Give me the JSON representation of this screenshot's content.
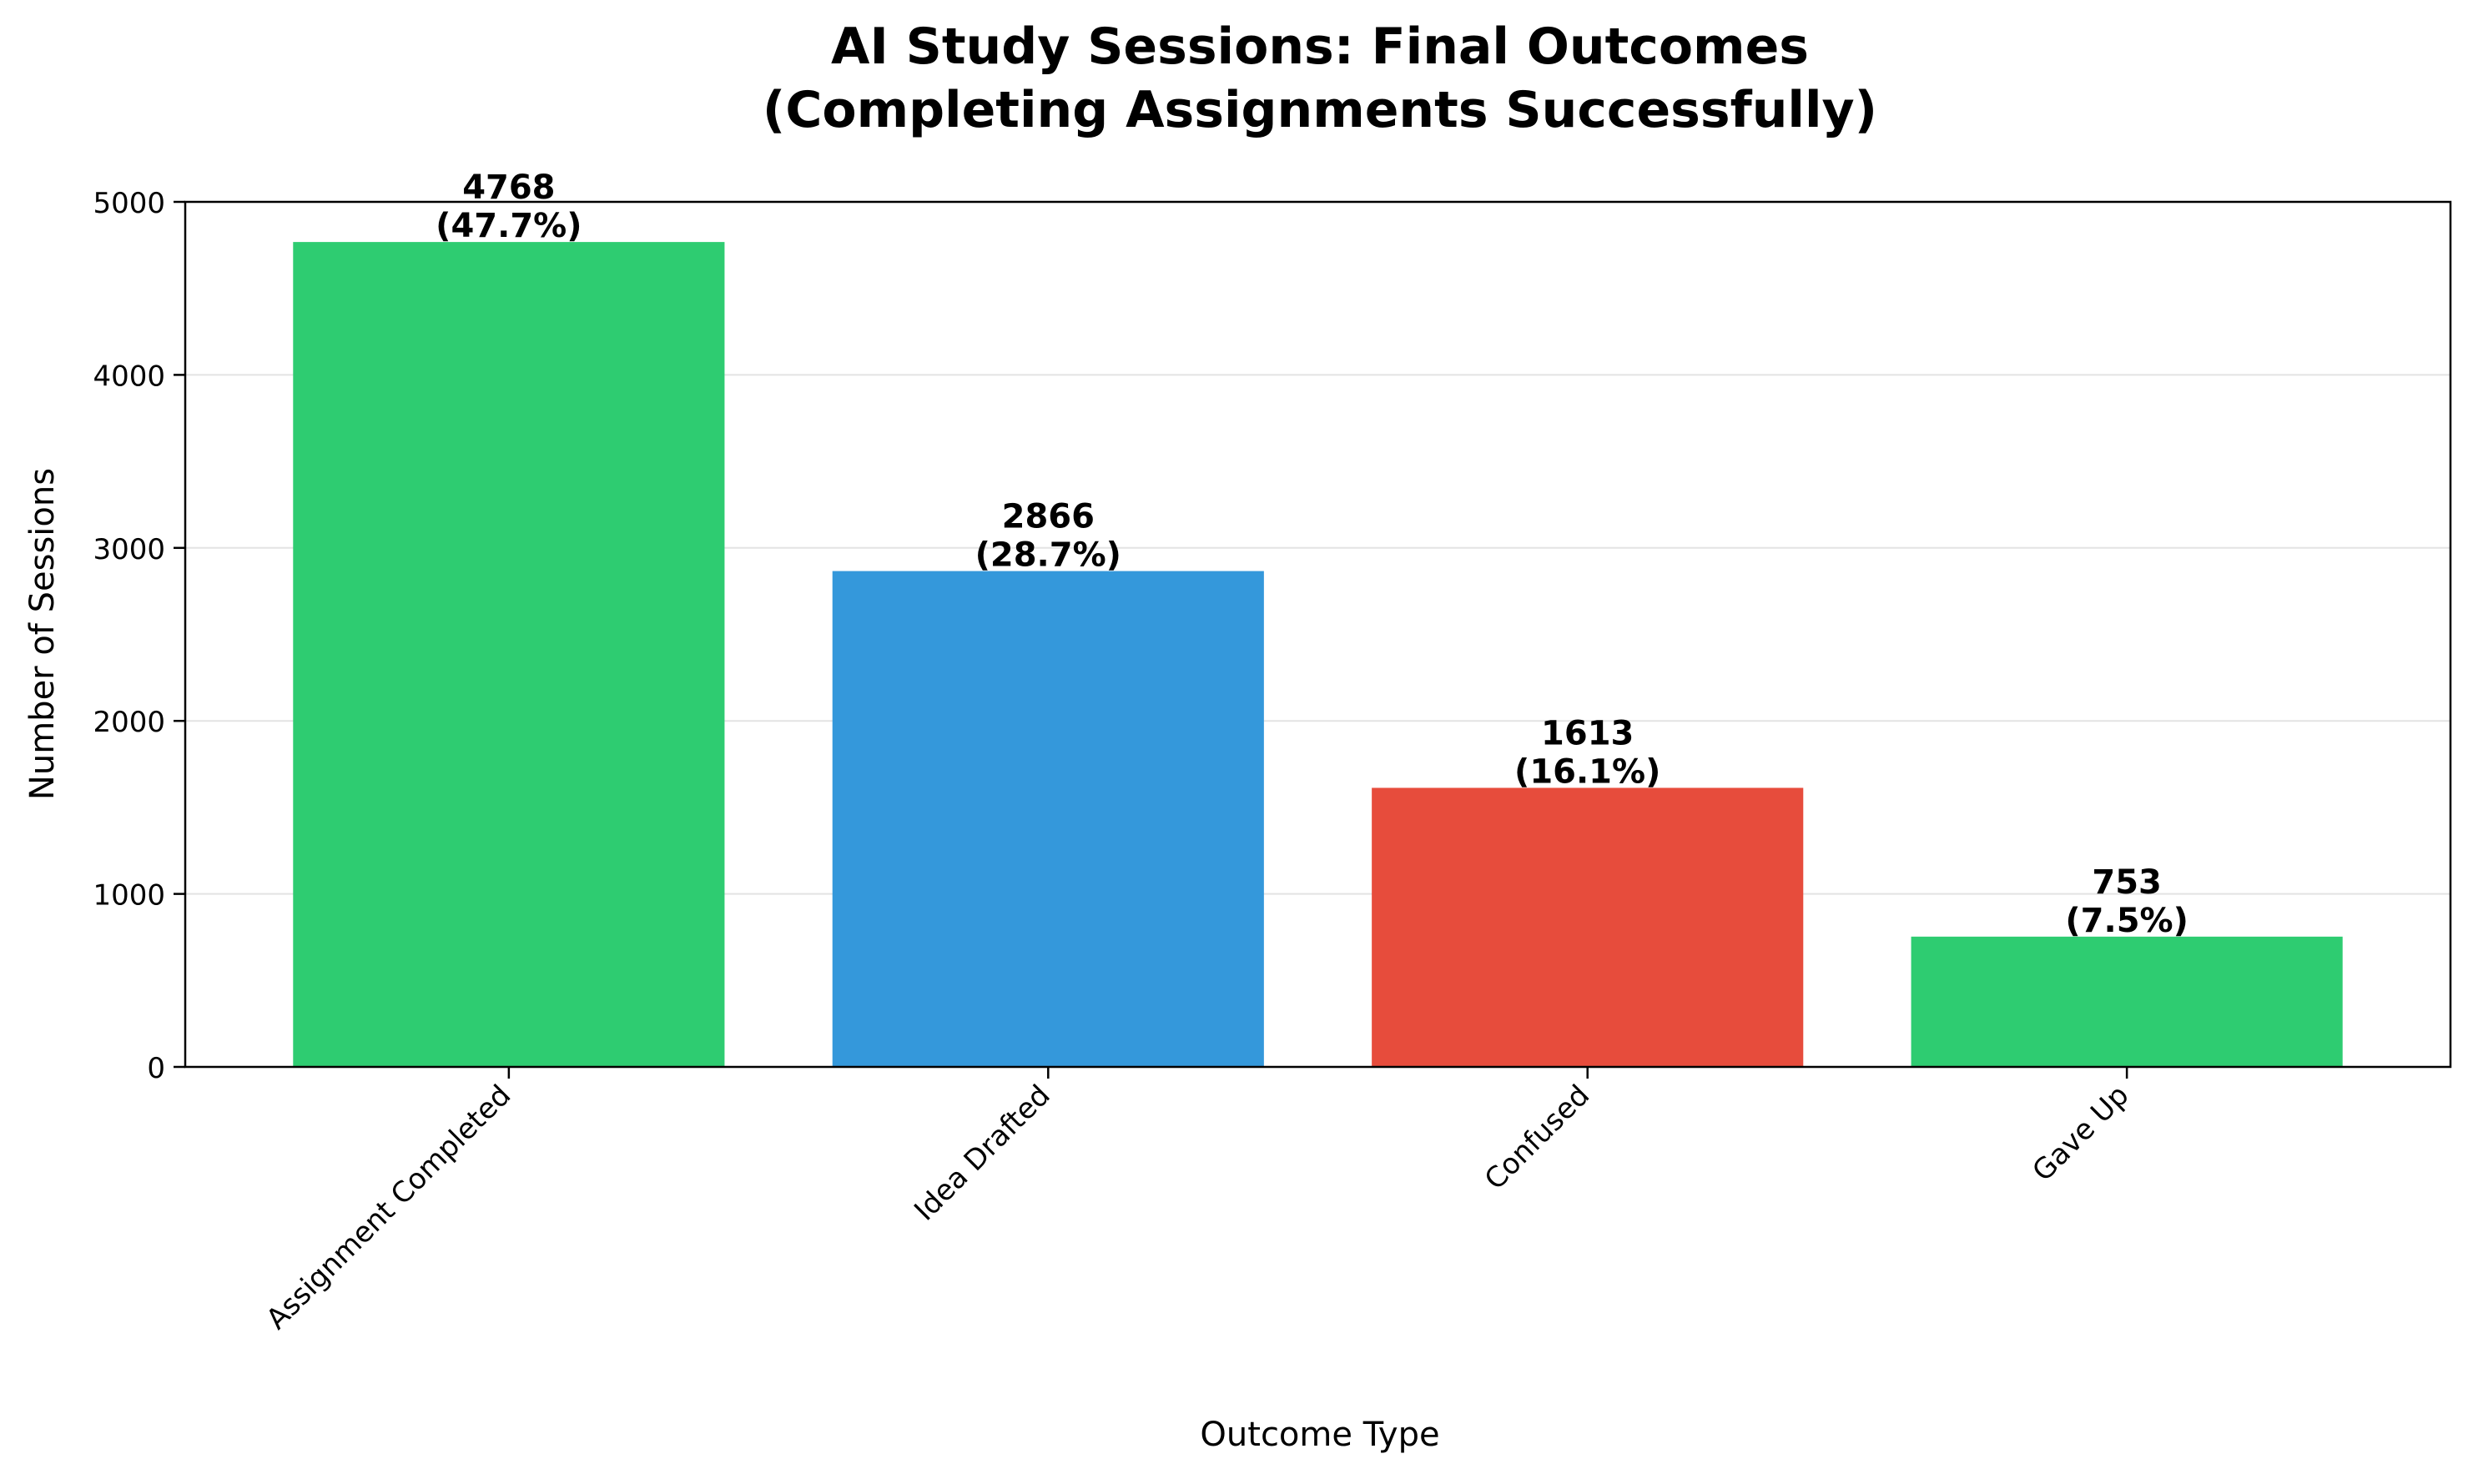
{
  "chart_data": {
    "type": "bar",
    "title": "AI Study Sessions: Final Outcomes\n(Completing Assignments Successfully)",
    "title_lines": [
      "AI Study Sessions: Final Outcomes",
      "(Completing Assignments Successfully)"
    ],
    "xlabel": "Outcome Type",
    "ylabel": "Number of Sessions",
    "categories": [
      "Assignment Completed",
      "Idea Drafted",
      "Confused",
      "Gave Up"
    ],
    "values": [
      4768,
      2866,
      1613,
      753
    ],
    "value_labels": [
      "4768",
      "2866",
      "1613",
      "753"
    ],
    "percent_labels": [
      "(47.7%)",
      "(28.7%)",
      "(16.1%)",
      "(7.5%)"
    ],
    "colors": [
      "#2ecc71",
      "#3498db",
      "#e74c3c",
      "#2ecc71"
    ],
    "ylim": [
      0,
      5000
    ],
    "yticks": [
      0,
      1000,
      2000,
      3000,
      4000,
      5000
    ],
    "ytick_labels": [
      "0",
      "1000",
      "2000",
      "3000",
      "4000",
      "5000"
    ],
    "grid": "y-axis horizontal, light",
    "legend": "none"
  }
}
